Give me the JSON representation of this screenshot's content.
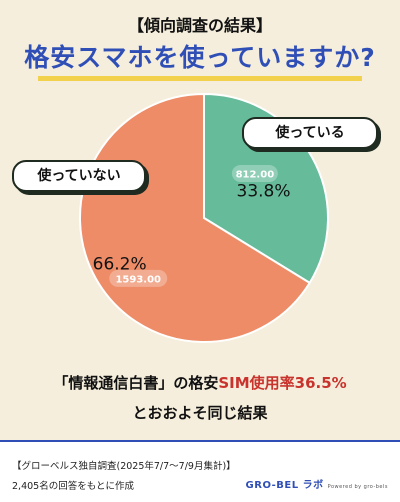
{
  "header": {
    "title": "【傾向調査の結果】",
    "question": "格安スマホを使っていますか?"
  },
  "chart_data": {
    "type": "pie",
    "title": "",
    "slices": [
      {
        "name": "使っている",
        "value": 812.0,
        "percent": "33.8%",
        "value_label": "812.00",
        "color": "#66bb9b"
      },
      {
        "name": "使っていない",
        "value": 1593.0,
        "percent": "66.2%",
        "value_label": "1593.00",
        "color": "#ed8c67"
      }
    ]
  },
  "labels": {
    "used": "使っている",
    "not_used": "使っていない"
  },
  "note": {
    "line1_pre": "「情報通信白書」の格安",
    "line1_highlight": "SIM使用率36.5%",
    "line2": "とおおよそ同じ結果"
  },
  "footer": {
    "line1": "【グローベルス独自調査(2025年7/7～7/9月集計)】",
    "line2": "2,405名の回答をもとに作成",
    "logo": "GRO-BEL ラボ",
    "powered": "Powered by gro-bels"
  }
}
